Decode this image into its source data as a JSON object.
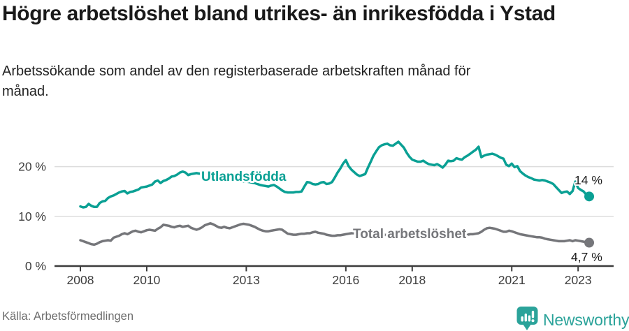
{
  "header": {
    "title": "Högre arbetslöshet bland utrikes- än inrikesfödda i Ystad",
    "subtitle": "Arbetssökande som andel av den registerbaserade arbetskraften månad för månad."
  },
  "footer": {
    "source": "Källa: Arbetsförmedlingen",
    "brand": "Newsworthy"
  },
  "colors": {
    "foreign_series": "#0aa094",
    "total_series": "#75767a",
    "grid": "#dcdcdc",
    "axis_line": "#3c3c3c",
    "axis_text": "#3e3e3e",
    "end_label_text": "#1c1c1c",
    "title_text": "#1a1a1a",
    "source_text": "#6d6d6d",
    "brand_teal": "#2ba39a"
  },
  "chart_data": {
    "type": "line",
    "title": "Högre arbetslöshet bland utrikes- än inrikesfödda i Ystad",
    "subtitle": "Arbetssökande som andel av den registerbaserade arbetskraften månad för månad.",
    "source": "Källa: Arbetsförmedlingen",
    "xlabel": "",
    "ylabel": "",
    "x_start": "2008-01",
    "x_end": "2023-05",
    "frequency": "monthly",
    "xticks": [
      2008,
      2010,
      2013,
      2016,
      2018,
      2021,
      2023
    ],
    "xtick_labels": [
      "2008",
      "2010",
      "2013",
      "2016",
      "2018",
      "2021",
      "2023"
    ],
    "yticks": [
      0,
      10,
      20
    ],
    "ytick_labels": [
      "0 %",
      "10 %",
      "20 %"
    ],
    "ylim": [
      0,
      26
    ],
    "grid": "horizontal-only",
    "legend": "inline-series-labels",
    "series": [
      {
        "name": "Utlandsfödda",
        "color": "#0aa094",
        "end_label": "14 %",
        "end_value": 14.0,
        "values": [
          12.0,
          11.8,
          11.9,
          12.5,
          12.1,
          11.9,
          11.9,
          12.7,
          13.0,
          13.1,
          13.7,
          14.0,
          14.2,
          14.5,
          14.8,
          15.0,
          15.1,
          14.6,
          14.9,
          15.0,
          15.2,
          15.4,
          15.8,
          15.9,
          16.0,
          16.2,
          16.4,
          17.0,
          17.2,
          16.7,
          17.1,
          17.3,
          17.6,
          18.0,
          18.1,
          18.4,
          18.8,
          19.0,
          18.8,
          18.3,
          18.5,
          18.6,
          18.7,
          18.6,
          18.6,
          18.6,
          18.5,
          18.6,
          18.8,
          19.0,
          18.6,
          18.1,
          17.8,
          17.6,
          17.5,
          17.4,
          17.3,
          17.2,
          17.1,
          17.0,
          17.0,
          16.9,
          16.8,
          16.7,
          16.5,
          16.3,
          16.2,
          16.1,
          16.0,
          16.2,
          16.3,
          16.0,
          15.6,
          15.2,
          14.9,
          14.8,
          14.8,
          14.8,
          14.9,
          14.9,
          15.0,
          16.0,
          16.9,
          16.8,
          16.5,
          16.4,
          16.5,
          16.8,
          16.9,
          16.5,
          16.6,
          16.9,
          17.8,
          18.8,
          19.6,
          20.6,
          21.3,
          20.1,
          19.4,
          18.9,
          18.4,
          18.1,
          18.3,
          18.5,
          19.8,
          21.0,
          22.2,
          23.1,
          23.9,
          24.3,
          24.5,
          24.6,
          24.3,
          24.2,
          24.6,
          25.0,
          24.4,
          23.8,
          22.8,
          22.0,
          21.4,
          21.2,
          21.0,
          21.0,
          21.2,
          20.8,
          20.5,
          20.4,
          20.3,
          20.5,
          20.2,
          19.8,
          20.4,
          21.2,
          21.1,
          21.2,
          21.7,
          21.5,
          21.4,
          21.9,
          22.2,
          22.6,
          23.0,
          23.4,
          24.0,
          21.9,
          22.2,
          22.4,
          22.5,
          22.6,
          22.4,
          22.1,
          21.8,
          21.6,
          20.4,
          20.1,
          20.6,
          19.9,
          20.1,
          19.1,
          18.6,
          18.2,
          17.9,
          17.7,
          17.4,
          17.3,
          17.2,
          17.3,
          17.2,
          17.0,
          16.8,
          16.5,
          15.9,
          15.3,
          14.7,
          14.9,
          15.0,
          14.5,
          15.1,
          17.0,
          15.7,
          15.3,
          15.0,
          14.3,
          14.0
        ]
      },
      {
        "name": "Total arbetslöshet",
        "color": "#75767a",
        "end_label": "4,7 %",
        "end_value": 4.7,
        "values": [
          5.2,
          5.0,
          4.8,
          4.6,
          4.4,
          4.3,
          4.5,
          4.8,
          5.0,
          5.1,
          5.2,
          5.1,
          5.7,
          5.9,
          6.1,
          6.4,
          6.6,
          6.4,
          6.7,
          7.0,
          7.1,
          6.9,
          6.8,
          7.0,
          7.2,
          7.3,
          7.2,
          7.1,
          7.5,
          7.8,
          8.3,
          8.2,
          8.1,
          7.9,
          7.8,
          8.0,
          8.1,
          7.9,
          8.0,
          8.1,
          7.7,
          7.5,
          7.3,
          7.5,
          7.8,
          8.2,
          8.4,
          8.6,
          8.4,
          8.1,
          7.8,
          7.7,
          7.9,
          7.7,
          7.6,
          7.8,
          8.0,
          8.2,
          8.4,
          8.5,
          8.4,
          8.3,
          8.1,
          7.9,
          7.6,
          7.3,
          7.1,
          7.0,
          7.0,
          7.1,
          7.2,
          7.3,
          7.4,
          7.3,
          6.9,
          6.5,
          6.4,
          6.3,
          6.3,
          6.4,
          6.5,
          6.5,
          6.6,
          6.6,
          6.8,
          6.9,
          6.7,
          6.6,
          6.5,
          6.3,
          6.2,
          6.1,
          6.1,
          6.2,
          6.2,
          6.3,
          6.4,
          6.5,
          6.6,
          6.6,
          6.5,
          6.4,
          6.4,
          6.3,
          6.3,
          6.4,
          6.4,
          6.5,
          6.5,
          6.4,
          6.3,
          6.2,
          6.2,
          6.1,
          6.1,
          6.2,
          6.2,
          6.3,
          6.3,
          6.4,
          6.4,
          6.3,
          6.2,
          6.1,
          6.1,
          6.0,
          6.0,
          6.1,
          6.1,
          6.2,
          6.2,
          6.1,
          6.1,
          6.0,
          6.0,
          5.9,
          5.9,
          6.0,
          6.1,
          6.2,
          6.3,
          6.4,
          6.4,
          6.5,
          6.6,
          6.9,
          7.3,
          7.6,
          7.7,
          7.6,
          7.5,
          7.3,
          7.1,
          6.9,
          6.9,
          7.1,
          7.0,
          6.8,
          6.6,
          6.4,
          6.3,
          6.2,
          6.1,
          6.0,
          5.9,
          5.8,
          5.8,
          5.7,
          5.5,
          5.4,
          5.3,
          5.2,
          5.1,
          5.0,
          5.0,
          5.0,
          5.1,
          5.2,
          5.0,
          5.2,
          5.1,
          5.0,
          4.9,
          4.8,
          4.7
        ]
      }
    ]
  }
}
